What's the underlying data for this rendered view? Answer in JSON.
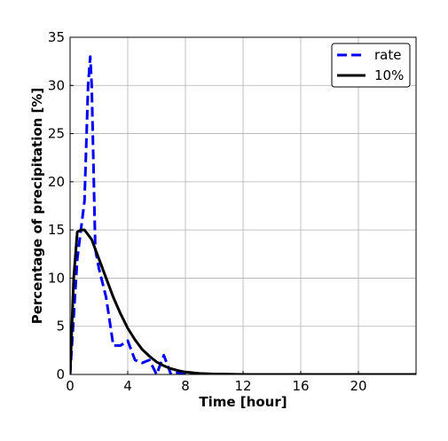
{
  "chart_data": {
    "type": "line",
    "title": "",
    "xlabel": "Time [hour]",
    "ylabel": "Percentage of precipitation [%]",
    "xlim": [
      0,
      24
    ],
    "ylim": [
      0,
      35
    ],
    "xticks": [
      0,
      4,
      8,
      12,
      16,
      20
    ],
    "yticks": [
      0,
      5,
      10,
      15,
      20,
      25,
      30,
      35
    ],
    "grid": true,
    "legend_position": "top-right",
    "series": [
      {
        "name": "rate",
        "style": "dashed",
        "color": "#0000ff",
        "x": [
          0,
          0.5,
          1.0,
          1.25,
          1.4,
          1.5,
          1.75,
          2.0,
          2.5,
          3.0,
          3.5,
          4.0,
          4.5,
          5.0,
          5.5,
          6.0,
          6.5,
          7.0,
          7.5,
          8.0,
          9.0,
          10.0,
          12.0,
          16.0,
          20.0,
          24.0
        ],
        "y": [
          0,
          12.0,
          18.0,
          30.0,
          33.0,
          30.0,
          13.0,
          11.0,
          8.0,
          3.0,
          3.0,
          3.5,
          1.5,
          1.2,
          1.5,
          0.0,
          2.0,
          0.0,
          0.2,
          0.1,
          0.0,
          0.0,
          0.0,
          0.0,
          0.0,
          0.0
        ]
      },
      {
        "name": "10%",
        "style": "solid",
        "color": "#000000",
        "x": [
          0,
          0.25,
          0.5,
          0.75,
          1.0,
          1.5,
          2.0,
          2.5,
          3.0,
          3.5,
          4.0,
          4.5,
          5.0,
          5.5,
          6.0,
          6.5,
          7.0,
          7.5,
          8.0,
          9.0,
          10.0,
          12.0,
          16.0,
          20.0,
          24.0
        ],
        "y": [
          0,
          10.0,
          14.8,
          15.0,
          15.0,
          14.0,
          12.0,
          10.0,
          8.0,
          6.3,
          4.8,
          3.6,
          2.6,
          1.9,
          1.3,
          0.9,
          0.6,
          0.4,
          0.25,
          0.1,
          0.05,
          0.0,
          0.0,
          0.0,
          0.0
        ]
      }
    ]
  }
}
